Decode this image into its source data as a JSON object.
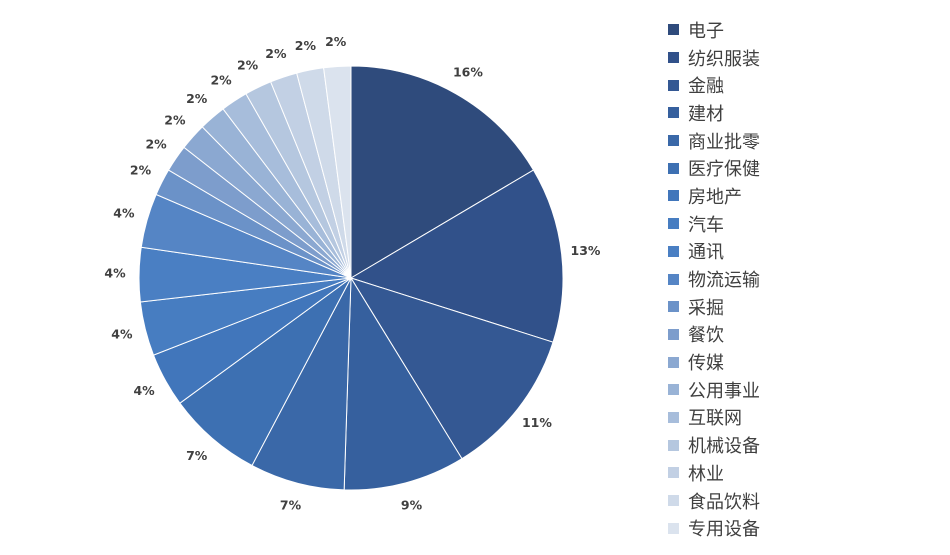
{
  "chart_data": {
    "type": "pie",
    "categories": [
      "电子",
      "纺织服装",
      "金融",
      "建材",
      "商业批零",
      "医疗保健",
      "房地产",
      "汽车",
      "通讯",
      "物流运输",
      "采掘",
      "餐饮",
      "传媒",
      "公用事业",
      "互联网",
      "机械设备",
      "林业",
      "食品饮料",
      "专用设备"
    ],
    "values": [
      16,
      13,
      11,
      9,
      7,
      7,
      4,
      4,
      4,
      4,
      2,
      2,
      2,
      2,
      2,
      2,
      2,
      2,
      2
    ],
    "data_labels": [
      "16%",
      "13%",
      "11%",
      "9%",
      "7%",
      "7%",
      "4%",
      "4%",
      "4%",
      "4%",
      "2%",
      "2%",
      "2%",
      "2%",
      "2%",
      "2%",
      "2%",
      "2%",
      "2%"
    ],
    "colors": [
      "#2f4b7c",
      "#31518a",
      "#345893",
      "#36609e",
      "#3a68a8",
      "#3d70b2",
      "#4176bb",
      "#477dc1",
      "#4a7fc3",
      "#5585c5",
      "#6b92c8",
      "#7d9dcc",
      "#8ba8d1",
      "#99b3d6",
      "#a7bddb",
      "#b5c7df",
      "#c2d0e4",
      "#cfdae9",
      "#dbe3ee"
    ],
    "legend_position": "right",
    "start": "12 o'clock",
    "direction": "clockwise"
  }
}
